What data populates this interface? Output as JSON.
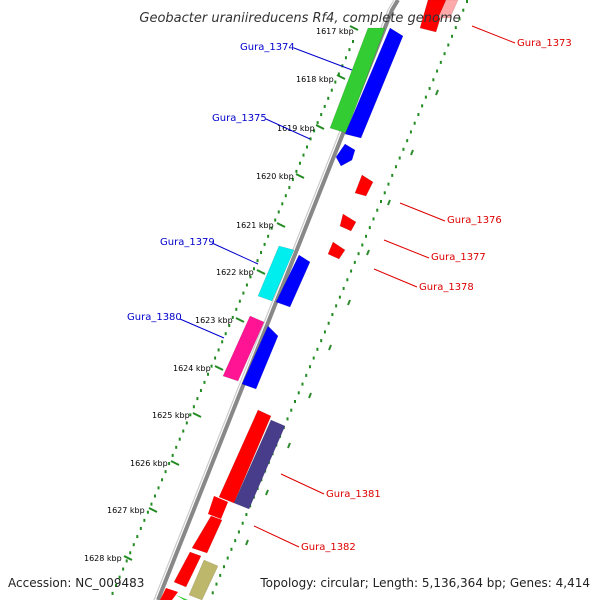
{
  "title": "Geobacter uraniireducens Rf4, complete genome",
  "accession": "Accession: NC_009483",
  "topology": "Topology: circular; Length: 5,136,364 bp; Genes: 4,414",
  "colors": {
    "backbone": "#888888",
    "gc_dots": "#228b22",
    "label_forward": "#0000cc",
    "label_reverse": "#dd0000"
  },
  "ticks": [
    "1617 kbp",
    "1618 kbp",
    "1619 kbp",
    "1620 kbp",
    "1621 kbp",
    "1622 kbp",
    "1623 kbp",
    "1624 kbp",
    "1625 kbp",
    "1626 kbp",
    "1627 kbp",
    "1628 kbp"
  ],
  "labels": {
    "forward": [
      "Gura_1374",
      "Gura_1375",
      "Gura_1379",
      "Gura_1380"
    ],
    "reverse": [
      "Gura_1373",
      "Gura_1376",
      "Gura_1377",
      "Gura_1378",
      "Gura_1381",
      "Gura_1382"
    ]
  },
  "features": [
    {
      "id": "Gura_1373",
      "strand": "reverse",
      "track": "gene",
      "color": "#ff0000"
    },
    {
      "id": "Gura_1373-outer",
      "strand": "reverse",
      "track": "outer",
      "color": "#ffaaaa"
    },
    {
      "id": "Gura_1374",
      "strand": "forward",
      "track": "cds",
      "color": "#33cc33"
    },
    {
      "id": "Gura_1374-gene",
      "strand": "forward",
      "track": "gene",
      "color": "#0000ff"
    },
    {
      "id": "Gura_1375",
      "strand": "forward",
      "track": "gene",
      "color": "#0000ff"
    },
    {
      "id": "Gura_1376",
      "strand": "reverse",
      "track": "gene",
      "color": "#ff0000"
    },
    {
      "id": "Gura_1377",
      "strand": "reverse",
      "track": "gene",
      "color": "#ff0000"
    },
    {
      "id": "Gura_1378",
      "strand": "reverse",
      "track": "gene",
      "color": "#ff0000"
    },
    {
      "id": "Gura_1379",
      "strand": "forward",
      "track": "cds",
      "color": "#00eeee"
    },
    {
      "id": "Gura_1379-gene",
      "strand": "forward",
      "track": "gene",
      "color": "#0000ff"
    },
    {
      "id": "Gura_1380",
      "strand": "forward",
      "track": "cds",
      "color": "#ff1493"
    },
    {
      "id": "Gura_1380-gene",
      "strand": "forward",
      "track": "gene",
      "color": "#0000ff"
    },
    {
      "id": "Gura_1381",
      "strand": "reverse",
      "track": "gene",
      "color": "#ff0000"
    },
    {
      "id": "Gura_1381-cds",
      "strand": "reverse",
      "track": "cds",
      "color": "#483d8b"
    },
    {
      "id": "Gura_1382",
      "strand": "reverse",
      "track": "gene",
      "color": "#ff0000"
    },
    {
      "id": "Gura_1383",
      "strand": "reverse",
      "track": "gene",
      "color": "#ff0000"
    },
    {
      "id": "Gura_1383-cds",
      "strand": "reverse",
      "track": "cds",
      "color": "#bdb76b"
    }
  ]
}
